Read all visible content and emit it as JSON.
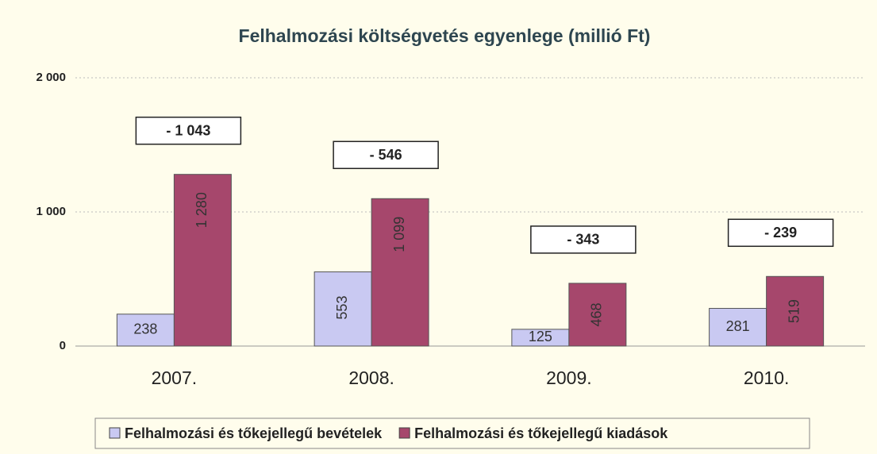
{
  "chart_data": {
    "type": "bar",
    "title": "Felhalmozási költségvetés egyenlege (millió Ft)",
    "categories": [
      "2007.",
      "2008.",
      "2009.",
      "2010."
    ],
    "series": [
      {
        "name": "Felhalmozási és tőkejellegű bevételek",
        "color": "#c9c9f2",
        "values": [
          238,
          553,
          125,
          281
        ]
      },
      {
        "name": "Felhalmozási és tőkejellegű kiadások",
        "color": "#a6476c",
        "values": [
          1280,
          1099,
          468,
          519
        ],
        "value_labels": [
          "1 280",
          "1 099",
          "468",
          "519"
        ]
      }
    ],
    "annotations": [
      "- 1 043",
      "- 546",
      "- 343",
      "- 239"
    ],
    "ylim": [
      0,
      2000
    ],
    "yticks": [
      0,
      {
        "value": 1000,
        "label": "1 000"
      },
      {
        "value": 2000,
        "label": "2 000"
      }
    ],
    "grid": true,
    "legend": "bottom"
  }
}
